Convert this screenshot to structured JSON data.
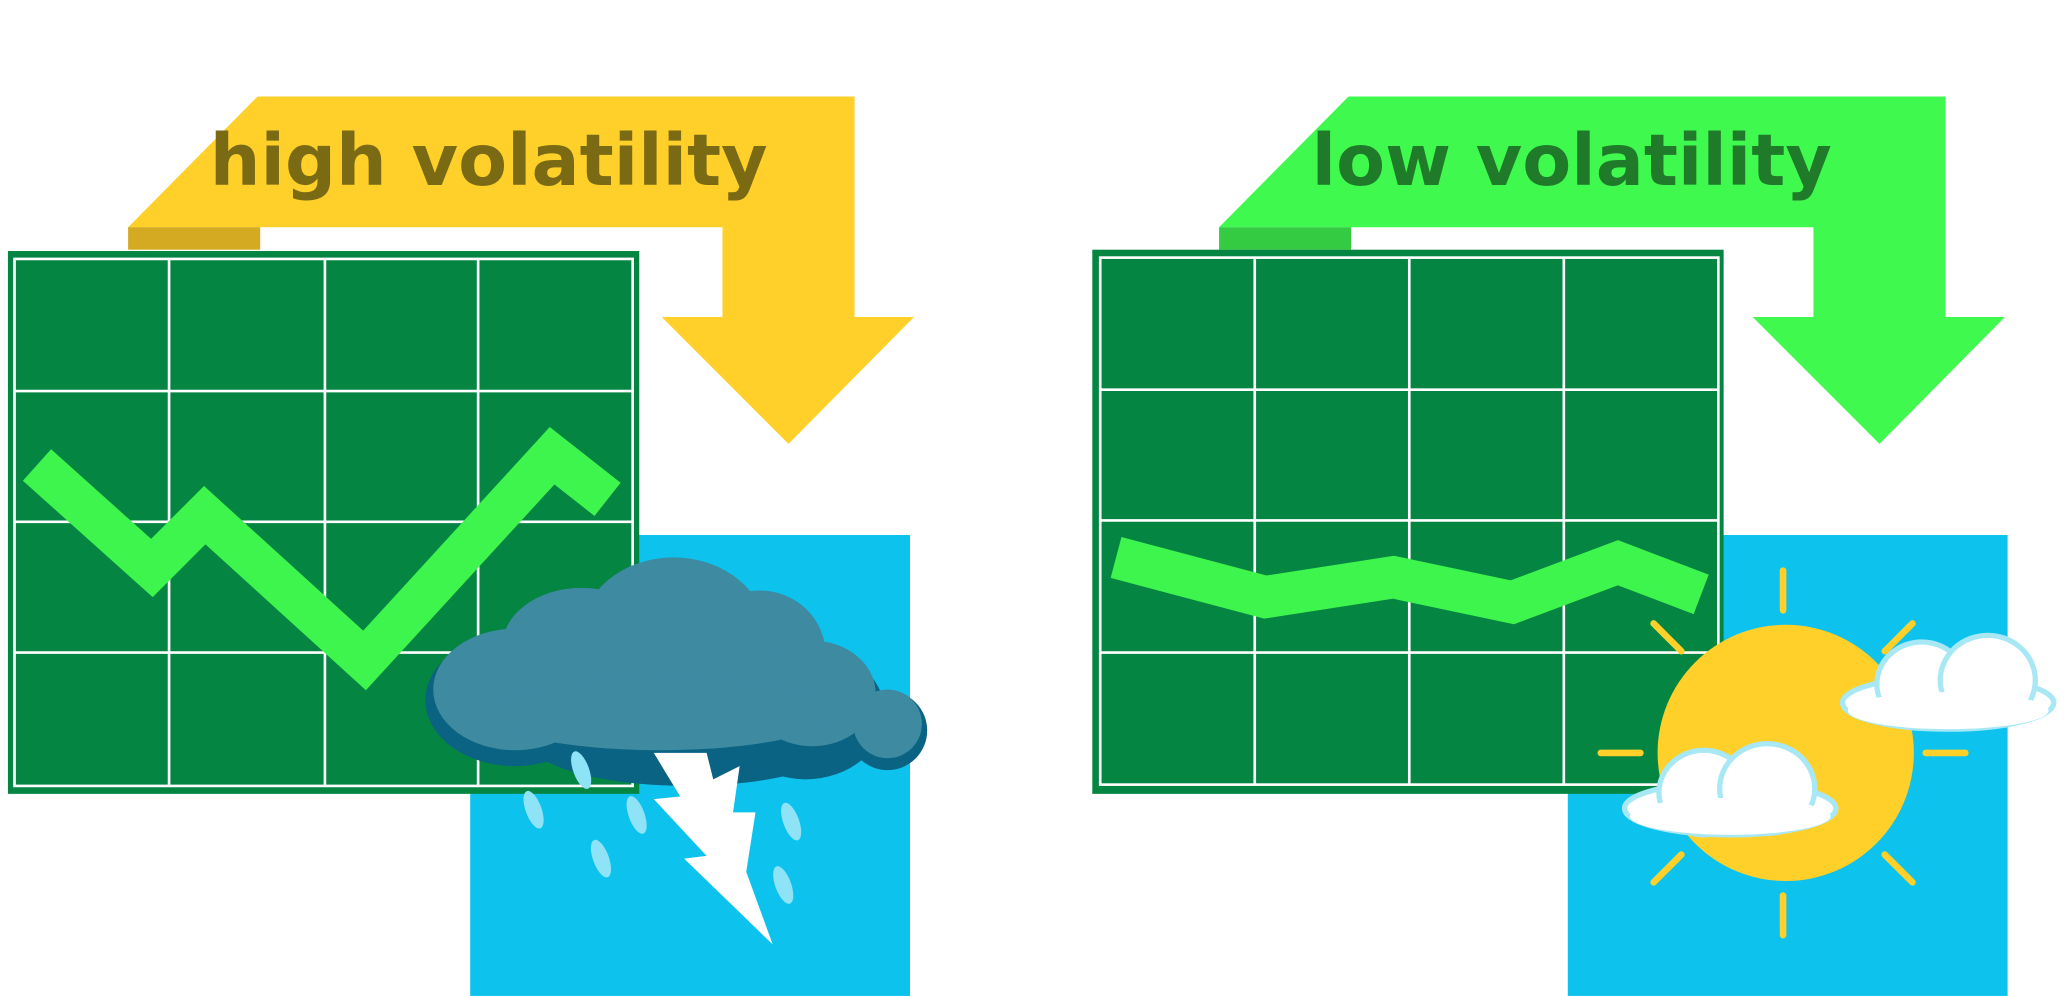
{
  "panels": [
    {
      "label": "high volatility"
    },
    {
      "label": "low volatility"
    }
  ]
}
